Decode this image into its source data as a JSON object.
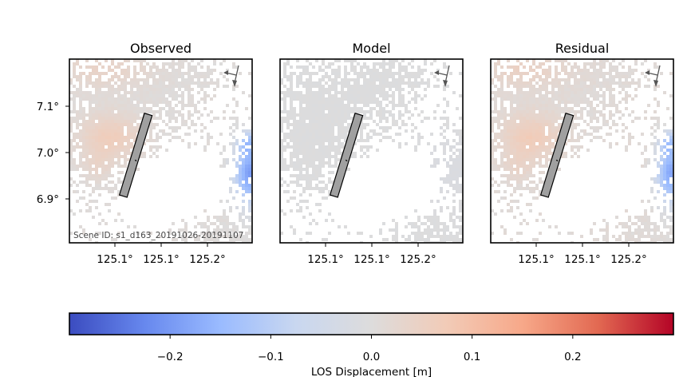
{
  "chart_data": [
    {
      "type": "heatmap",
      "title": "Observed",
      "xtick_labels": [
        "125.1°",
        "125.1°",
        "125.2°"
      ],
      "ytick_labels": [
        "7.1°",
        "7.0°",
        "6.9°"
      ],
      "annotation": "Scene ID: s1_d163_20191026-20191107",
      "fault_trace": {
        "from": [
          125.078,
          6.915
        ],
        "to": [
          125.105,
          7.085
        ]
      },
      "field": "observed"
    },
    {
      "type": "heatmap",
      "title": "Model",
      "xtick_labels": [
        "125.1°",
        "125.1°",
        "125.2°"
      ],
      "ytick_labels": [],
      "fault_trace": {
        "from": [
          125.078,
          6.915
        ],
        "to": [
          125.105,
          7.085
        ]
      },
      "field": "model"
    },
    {
      "type": "heatmap",
      "title": "Residual",
      "xtick_labels": [
        "125.1°",
        "125.1°",
        "125.2°"
      ],
      "ytick_labels": [],
      "fault_trace": {
        "from": [
          125.078,
          6.915
        ],
        "to": [
          125.105,
          7.085
        ]
      },
      "field": "residual"
    }
  ],
  "colorbar": {
    "label": "LOS Displacement [m]",
    "range": [
      -0.3,
      0.3
    ],
    "ticks": [
      -0.2,
      -0.1,
      0.0,
      0.1,
      0.2
    ],
    "tick_labels": [
      "−0.2",
      "−0.1",
      "0.0",
      "0.1",
      "0.2"
    ],
    "colormap": "coolwarm",
    "stops": [
      "#3b4cc0",
      "#6788ee",
      "#9abbff",
      "#c9d7f0",
      "#dddcdc",
      "#f2cbb7",
      "#f7a889",
      "#e26952",
      "#b40426"
    ]
  }
}
